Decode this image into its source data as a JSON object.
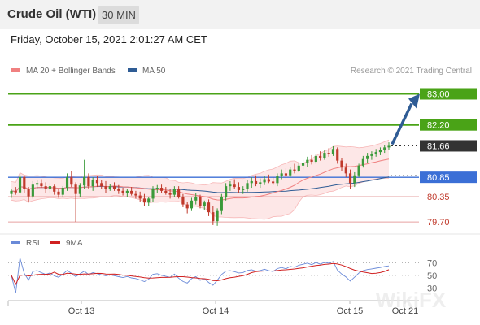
{
  "header": {
    "title": "Crude Oil (WTI)",
    "timeframe": "30 MIN"
  },
  "timestamp": "Friday, October 15, 2021 2:01:27 AM CET",
  "legend": {
    "ma20": "MA 20 + Bollinger Bands",
    "ma50": "MA 50",
    "credit": "Research © 2021 Trading Central",
    "colors": {
      "ma20": "#f08080",
      "ma50": "#2f5c95",
      "up": "#3a9a3a",
      "down": "#c0392b"
    }
  },
  "rsi_legend": {
    "rsi": "RSI",
    "ma": "9MA",
    "colors": {
      "rsi": "#6a8ad8",
      "ma": "#d02020"
    }
  },
  "watermark": "WikiFX",
  "chart_data": {
    "type": "candlestick",
    "y_range": [
      79.45,
      83.45
    ],
    "x_ticks": [
      "Oct 13",
      "Oct 14",
      "Oct 15",
      "Oct 21"
    ],
    "price_levels": [
      {
        "label": "83.00",
        "value": 83.0,
        "kind": "target"
      },
      {
        "label": "82.20",
        "value": 82.2,
        "kind": "resistance"
      },
      {
        "label": "81.66",
        "value": 81.66,
        "kind": "last"
      },
      {
        "label": "80.85",
        "value": 80.85,
        "kind": "pivot"
      },
      {
        "label": "80.35",
        "value": 80.35,
        "kind": "support"
      },
      {
        "label": "79.70",
        "value": 79.7,
        "kind": "support"
      }
    ],
    "candles": [
      [
        80.42,
        80.55,
        80.32,
        80.5
      ],
      [
        80.5,
        80.6,
        80.4,
        80.46
      ],
      [
        80.46,
        80.95,
        80.4,
        80.86
      ],
      [
        80.86,
        80.9,
        80.45,
        80.55
      ],
      [
        80.55,
        80.6,
        80.2,
        80.36
      ],
      [
        80.36,
        80.75,
        80.3,
        80.66
      ],
      [
        80.66,
        80.78,
        80.55,
        80.7
      ],
      [
        80.7,
        80.8,
        80.58,
        80.62
      ],
      [
        80.62,
        80.72,
        80.45,
        80.55
      ],
      [
        80.55,
        80.7,
        80.45,
        80.62
      ],
      [
        80.62,
        80.66,
        80.4,
        80.48
      ],
      [
        80.48,
        80.55,
        80.32,
        80.4
      ],
      [
        80.4,
        80.62,
        80.35,
        80.58
      ],
      [
        80.58,
        80.95,
        80.5,
        80.85
      ],
      [
        80.85,
        81.02,
        80.6,
        80.66
      ],
      [
        80.66,
        80.72,
        79.7,
        80.42
      ],
      [
        80.42,
        80.7,
        80.35,
        80.64
      ],
      [
        80.64,
        81.3,
        80.55,
        80.86
      ],
      [
        80.86,
        80.95,
        80.55,
        80.62
      ],
      [
        80.62,
        80.85,
        80.5,
        80.78
      ],
      [
        80.78,
        80.88,
        80.6,
        80.7
      ],
      [
        80.7,
        80.78,
        80.55,
        80.62
      ],
      [
        80.62,
        80.75,
        80.45,
        80.55
      ],
      [
        80.55,
        80.68,
        80.5,
        80.62
      ],
      [
        80.62,
        80.72,
        80.5,
        80.56
      ],
      [
        80.56,
        80.65,
        80.42,
        80.5
      ],
      [
        80.5,
        80.58,
        80.38,
        80.44
      ],
      [
        80.44,
        80.55,
        80.35,
        80.5
      ],
      [
        80.5,
        80.6,
        80.38,
        80.42
      ],
      [
        80.42,
        80.5,
        80.3,
        80.38
      ],
      [
        80.38,
        80.48,
        80.22,
        80.3
      ],
      [
        80.3,
        80.42,
        80.12,
        80.2
      ],
      [
        80.2,
        80.35,
        80.1,
        80.3
      ],
      [
        80.3,
        80.62,
        80.22,
        80.55
      ],
      [
        80.55,
        80.65,
        80.45,
        80.58
      ],
      [
        80.58,
        80.66,
        80.45,
        80.5
      ],
      [
        80.5,
        80.6,
        80.4,
        80.45
      ],
      [
        80.45,
        80.55,
        80.3,
        80.4
      ],
      [
        80.4,
        80.62,
        80.35,
        80.55
      ],
      [
        80.55,
        80.62,
        80.3,
        80.35
      ],
      [
        80.35,
        80.42,
        80.08,
        80.15
      ],
      [
        80.15,
        80.22,
        79.92,
        80.05
      ],
      [
        80.05,
        80.32,
        79.98,
        80.25
      ],
      [
        80.25,
        80.45,
        80.15,
        80.35
      ],
      [
        80.35,
        80.4,
        80.05,
        80.12
      ],
      [
        80.12,
        80.25,
        80.0,
        80.2
      ],
      [
        80.2,
        80.28,
        79.85,
        79.95
      ],
      [
        79.95,
        80.1,
        79.62,
        79.72
      ],
      [
        79.72,
        80.05,
        79.6,
        79.98
      ],
      [
        79.98,
        80.42,
        79.9,
        80.35
      ],
      [
        80.35,
        80.7,
        80.25,
        80.62
      ],
      [
        80.62,
        80.75,
        80.5,
        80.66
      ],
      [
        80.66,
        80.8,
        80.55,
        80.6
      ],
      [
        80.6,
        80.72,
        80.45,
        80.52
      ],
      [
        80.52,
        80.62,
        80.42,
        80.55
      ],
      [
        80.55,
        80.78,
        80.48,
        80.7
      ],
      [
        80.7,
        80.85,
        80.58,
        80.75
      ],
      [
        80.75,
        80.9,
        80.62,
        80.68
      ],
      [
        80.68,
        80.82,
        80.58,
        80.72
      ],
      [
        80.72,
        80.88,
        80.65,
        80.8
      ],
      [
        80.8,
        80.92,
        80.7,
        80.74
      ],
      [
        80.74,
        80.85,
        80.65,
        80.7
      ],
      [
        80.7,
        80.95,
        80.62,
        80.88
      ],
      [
        80.88,
        81.05,
        80.8,
        80.95
      ],
      [
        80.95,
        81.08,
        80.82,
        80.9
      ],
      [
        80.9,
        81.12,
        80.85,
        81.05
      ],
      [
        81.05,
        81.2,
        80.95,
        81.02
      ],
      [
        81.02,
        81.22,
        80.98,
        81.15
      ],
      [
        81.15,
        81.3,
        81.05,
        81.22
      ],
      [
        81.22,
        81.38,
        81.12,
        81.3
      ],
      [
        81.3,
        81.42,
        81.18,
        81.25
      ],
      [
        81.25,
        81.45,
        81.2,
        81.4
      ],
      [
        81.4,
        81.52,
        81.28,
        81.35
      ],
      [
        81.35,
        81.55,
        81.3,
        81.48
      ],
      [
        81.48,
        81.6,
        81.38,
        81.45
      ],
      [
        81.45,
        81.65,
        81.4,
        81.58
      ],
      [
        81.58,
        81.62,
        81.2,
        81.28
      ],
      [
        81.28,
        81.35,
        81.0,
        81.1
      ],
      [
        81.1,
        81.2,
        80.85,
        80.95
      ],
      [
        80.95,
        81.05,
        80.55,
        80.7
      ],
      [
        80.7,
        80.98,
        80.6,
        80.9
      ],
      [
        80.9,
        81.2,
        80.85,
        81.15
      ],
      [
        81.15,
        81.4,
        81.1,
        81.32
      ],
      [
        81.32,
        81.48,
        81.22,
        81.4
      ],
      [
        81.4,
        81.52,
        81.3,
        81.45
      ],
      [
        81.45,
        81.58,
        81.38,
        81.5
      ],
      [
        81.5,
        81.62,
        81.42,
        81.55
      ],
      [
        81.55,
        81.68,
        81.48,
        81.62
      ],
      [
        81.62,
        81.75,
        81.55,
        81.66
      ]
    ],
    "rsi_panel": {
      "levels": [
        70,
        50,
        30
      ]
    }
  }
}
